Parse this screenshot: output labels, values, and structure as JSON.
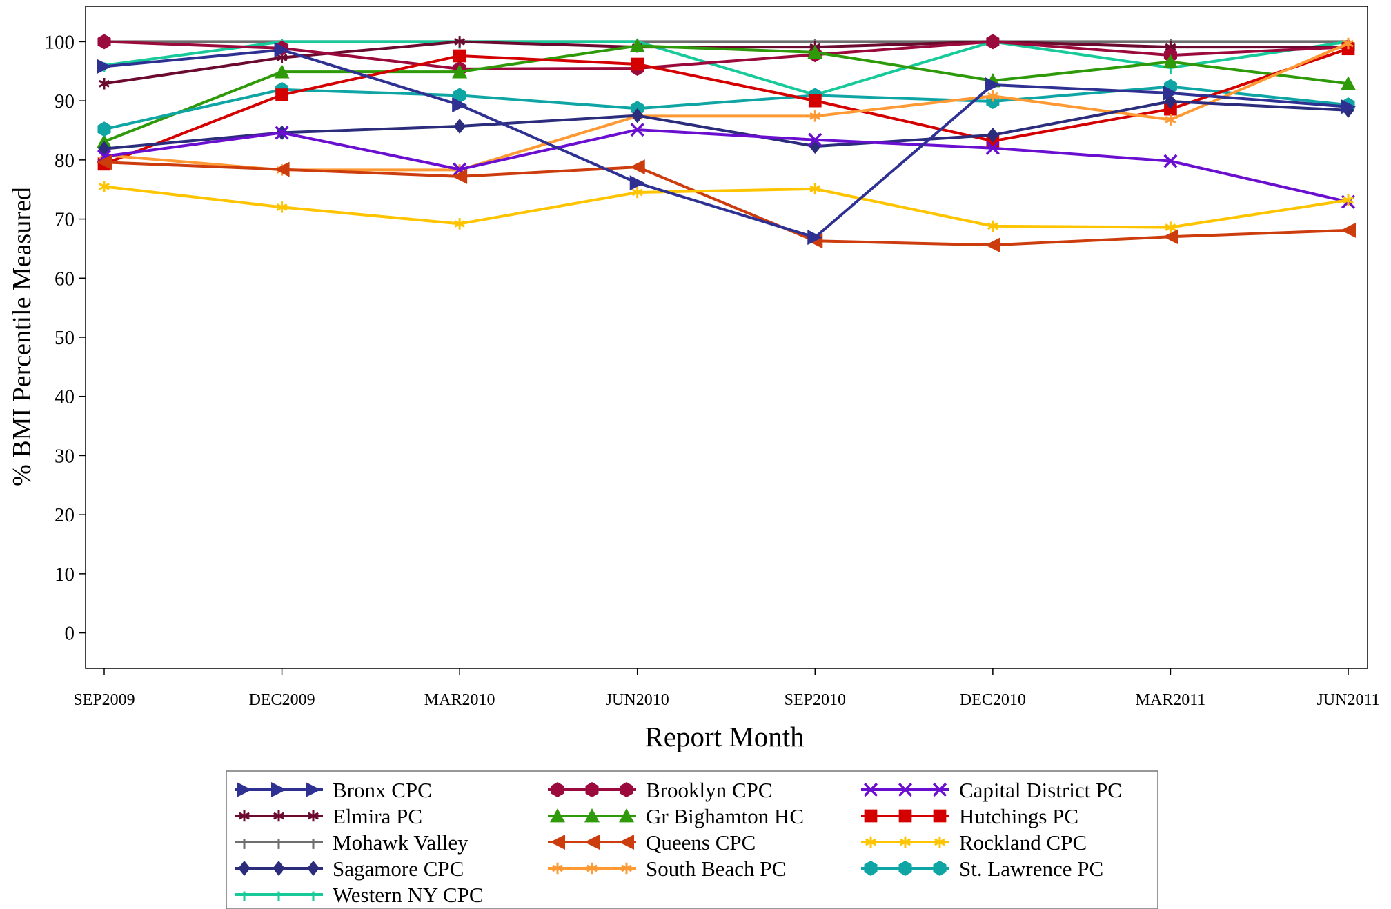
{
  "chart_data": {
    "type": "line",
    "title": "",
    "xlabel": "Report Month",
    "ylabel": "% BMI Percentile Measured",
    "categories": [
      "SEP2009",
      "DEC2009",
      "MAR2010",
      "JUN2010",
      "SEP2010",
      "DEC2010",
      "MAR2011",
      "JUN2011"
    ],
    "yticks": [
      0,
      10,
      20,
      30,
      40,
      50,
      60,
      70,
      80,
      90,
      100
    ],
    "ylim": [
      -6,
      106
    ],
    "grid": false,
    "legend_position": "bottom",
    "series": [
      {
        "name": "Bronx CPC",
        "color": "#2e3192",
        "marker": "triangle-right",
        "values": [
          95.8,
          98.6,
          89.3,
          76.1,
          66.9,
          92.7,
          91.3,
          89.0
        ]
      },
      {
        "name": "Brooklyn CPC",
        "color": "#9b0a3c",
        "marker": "hexagon",
        "values": [
          100.0,
          98.9,
          95.4,
          95.5,
          97.8,
          100.0,
          97.7,
          99.1
        ]
      },
      {
        "name": "Capital District PC",
        "color": "#6a0fcf",
        "marker": "x",
        "values": [
          80.6,
          84.6,
          78.4,
          85.1,
          83.4,
          82.0,
          79.8,
          72.9
        ]
      },
      {
        "name": "Elmira PC",
        "color": "#6b0a2e",
        "marker": "star",
        "values": [
          92.9,
          97.3,
          100.0,
          99.1,
          99.1,
          100.0,
          99.1,
          99.1
        ]
      },
      {
        "name": "Gr Bighamton HC",
        "color": "#2e9a09",
        "marker": "triangle-up",
        "values": [
          83.1,
          94.9,
          94.9,
          99.3,
          98.2,
          93.4,
          96.6,
          92.9
        ]
      },
      {
        "name": "Hutchings PC",
        "color": "#d40000",
        "marker": "square",
        "values": [
          79.3,
          91.0,
          97.6,
          96.2,
          90.0,
          83.2,
          88.6,
          98.8
        ]
      },
      {
        "name": "Mohawk Valley",
        "color": "#6e6e6e",
        "marker": "tick",
        "values": [
          100.0,
          100.0,
          100.0,
          100.0,
          100.0,
          100.0,
          100.0,
          100.0
        ]
      },
      {
        "name": "Queens CPC",
        "color": "#cc3c0c",
        "marker": "triangle-left",
        "values": [
          79.6,
          78.4,
          77.2,
          78.8,
          66.3,
          65.6,
          67.0,
          68.1
        ]
      },
      {
        "name": "Rockland CPC",
        "color": "#ffc400",
        "marker": "star",
        "values": [
          75.5,
          72.0,
          69.2,
          74.5,
          75.1,
          68.8,
          68.6,
          73.2
        ]
      },
      {
        "name": "Sagamore CPC",
        "color": "#2b2d7c",
        "marker": "diamond",
        "values": [
          81.9,
          84.6,
          85.7,
          87.5,
          82.3,
          84.2,
          89.9,
          88.4
        ]
      },
      {
        "name": "South Beach PC",
        "color": "#ff9933",
        "marker": "star",
        "values": [
          80.8,
          78.3,
          78.3,
          87.4,
          87.4,
          90.8,
          86.8,
          99.7
        ]
      },
      {
        "name": "St. Lawrence PC",
        "color": "#10a5a5",
        "marker": "hexagon",
        "values": [
          85.2,
          91.9,
          90.9,
          88.7,
          90.9,
          89.9,
          92.4,
          89.3
        ]
      },
      {
        "name": "Western NY CPC",
        "color": "#18c99a",
        "marker": "tick",
        "values": [
          96.0,
          100.0,
          100.0,
          100.0,
          91.0,
          100.0,
          95.6,
          100.0
        ]
      }
    ]
  }
}
